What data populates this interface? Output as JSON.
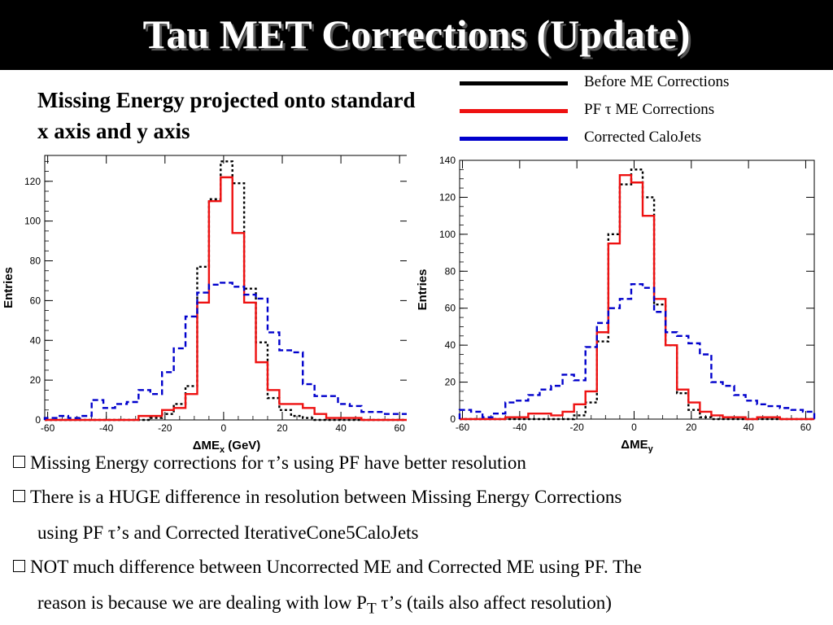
{
  "slide": {
    "title": "Tau MET Corrections (Update)",
    "subtitle": "Missing Energy projected onto standard x axis and y axis"
  },
  "legend": [
    {
      "label": "Before ME Corrections",
      "color": "#000000"
    },
    {
      "label": "PF τ ME Corrections",
      "color": "#ee1111"
    },
    {
      "label": "Corrected CaloJets",
      "color": "#0000cc"
    }
  ],
  "bullets": [
    {
      "text": "Missing Energy corrections for τ’s using PF have better resolution"
    },
    {
      "text": "There is a HUGE difference in resolution between Missing Energy Corrections",
      "cont": "using PF τ’s and Corrected IterativeCone5CaloJets"
    },
    {
      "text": "NOT much difference between Uncorrected ME and Corrected ME using PF. The",
      "cont_pre": "reason is because we are dealing with low P",
      "cont_sub": "T",
      "cont_post": " τ’s (tails also affect resolution)"
    }
  ],
  "chart_data": [
    {
      "type": "histogram",
      "xlabel_main": "ΔME",
      "xlabel_sub": "x",
      "xlabel_unit": " (GeV)",
      "ylabel": "Entries",
      "xlim": [
        -61,
        63
      ],
      "ylim": [
        0,
        133
      ],
      "xticks": [
        -60,
        -40,
        -20,
        0,
        20,
        40,
        60
      ],
      "yticks": [
        0,
        20,
        40,
        60,
        80,
        100,
        120
      ],
      "bin_edges": [
        -61,
        -57,
        -53,
        -49,
        -45,
        -41,
        -37,
        -33,
        -29,
        -25,
        -21,
        -17,
        -13,
        -9,
        -5,
        -1,
        3,
        7,
        11,
        15,
        19,
        23,
        27,
        31,
        35,
        39,
        43,
        47,
        51,
        55,
        59,
        63
      ],
      "series": [
        {
          "name": "Before ME Corrections",
          "color": "#000000",
          "dash": "3,3",
          "values": [
            0,
            0,
            0,
            0,
            0,
            0,
            0,
            0,
            0,
            1,
            3,
            8,
            17,
            77,
            111,
            130,
            119,
            66,
            39,
            11,
            5,
            2,
            1,
            0,
            0,
            0,
            0,
            0,
            0,
            0,
            0
          ]
        },
        {
          "name": "PF τ ME Corrections",
          "color": "#ee1111",
          "dash": "",
          "values": [
            0,
            0,
            0,
            0,
            0,
            0,
            0,
            0,
            2,
            2,
            5,
            6,
            13,
            59,
            110,
            122,
            94,
            59,
            29,
            15,
            8,
            8,
            6,
            3,
            1,
            1,
            1,
            0,
            0,
            0,
            0
          ]
        },
        {
          "name": "Corrected CaloJets",
          "color": "#0000cc",
          "dash": "7,4",
          "values": [
            1,
            2,
            1,
            2,
            10,
            6,
            8,
            9,
            15,
            13,
            24,
            36,
            52,
            64,
            68,
            69,
            67,
            63,
            61,
            44,
            35,
            34,
            18,
            12,
            12,
            8,
            7,
            4,
            4,
            3,
            3
          ]
        }
      ]
    },
    {
      "type": "histogram",
      "xlabel_main": "ΔME",
      "xlabel_sub": "y",
      "xlabel_unit": "",
      "ylabel": "Entries",
      "xlim": [
        -61,
        63
      ],
      "ylim": [
        0,
        140
      ],
      "xticks": [
        -60,
        -40,
        -20,
        0,
        20,
        40,
        60
      ],
      "yticks": [
        0,
        20,
        40,
        60,
        80,
        100,
        120,
        140
      ],
      "bin_edges": [
        -61,
        -57,
        -53,
        -49,
        -45,
        -41,
        -37,
        -33,
        -29,
        -25,
        -21,
        -17,
        -13,
        -9,
        -5,
        -1,
        3,
        7,
        11,
        15,
        19,
        23,
        27,
        31,
        35,
        39,
        43,
        47,
        51,
        55,
        59,
        63
      ],
      "series": [
        {
          "name": "Before ME Corrections",
          "color": "#000000",
          "dash": "3,3",
          "values": [
            0,
            0,
            0,
            0,
            0,
            0,
            0,
            0,
            0,
            0,
            2,
            9,
            42,
            100,
            127,
            135,
            120,
            62,
            40,
            14,
            5,
            1,
            0,
            0,
            0,
            0,
            0,
            0,
            0,
            0,
            0
          ]
        },
        {
          "name": "PF τ ME Corrections",
          "color": "#ee1111",
          "dash": "",
          "values": [
            0,
            0,
            0,
            0,
            1,
            1,
            3,
            3,
            2,
            4,
            8,
            15,
            47,
            95,
            132,
            128,
            110,
            65,
            40,
            16,
            9,
            4,
            2,
            1,
            1,
            0,
            1,
            1,
            0,
            0,
            0
          ]
        },
        {
          "name": "Corrected CaloJets",
          "color": "#0000cc",
          "dash": "7,4",
          "values": [
            5,
            4,
            1,
            3,
            9,
            10,
            13,
            16,
            18,
            24,
            21,
            39,
            52,
            60,
            65,
            73,
            71,
            58,
            47,
            45,
            41,
            35,
            20,
            18,
            13,
            10,
            8,
            7,
            6,
            5,
            4
          ]
        }
      ]
    }
  ]
}
